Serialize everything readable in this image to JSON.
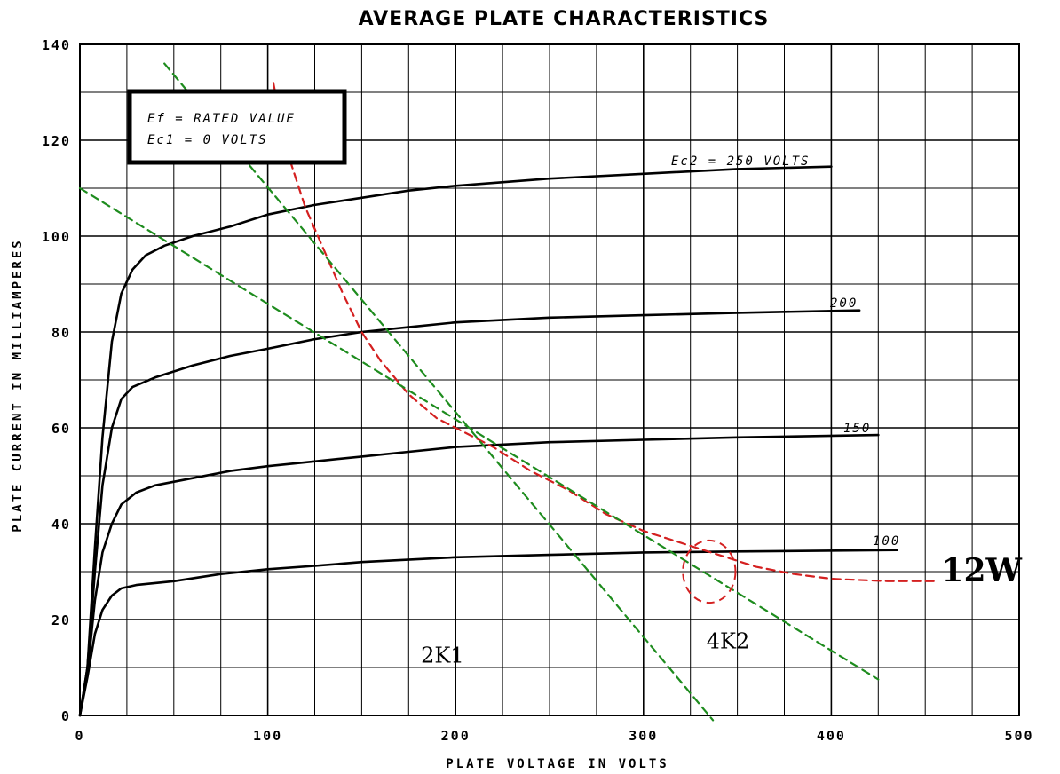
{
  "chart_data": {
    "type": "line",
    "title": "AVERAGE PLATE CHARACTERISTICS",
    "xlabel": "PLATE VOLTAGE IN VOLTS",
    "ylabel": "PLATE CURRENT IN MILLIAMPERES",
    "xlim": [
      0,
      500
    ],
    "ylim": [
      0,
      140
    ],
    "xticks": [
      0,
      100,
      200,
      300,
      400,
      500
    ],
    "yticks": [
      0,
      20,
      40,
      60,
      80,
      100,
      120,
      140
    ],
    "grid": true,
    "conditions": [
      "Ef = RATED VALUE",
      "Ec1 = 0 VOLTS"
    ],
    "series": [
      {
        "name": "Ec2 = 250 VOLTS",
        "color": "#000000",
        "style": "solid",
        "points": [
          [
            0,
            0
          ],
          [
            4,
            10
          ],
          [
            8,
            35
          ],
          [
            12,
            58
          ],
          [
            17,
            78
          ],
          [
            22,
            88
          ],
          [
            28,
            93
          ],
          [
            35,
            96
          ],
          [
            45,
            98
          ],
          [
            60,
            100
          ],
          [
            80,
            102
          ],
          [
            100,
            104.5
          ],
          [
            125,
            106.5
          ],
          [
            150,
            108
          ],
          [
            175,
            109.5
          ],
          [
            200,
            110.5
          ],
          [
            250,
            112
          ],
          [
            300,
            113
          ],
          [
            350,
            114
          ],
          [
            400,
            114.5
          ]
        ]
      },
      {
        "name": "200",
        "color": "#000000",
        "style": "solid",
        "points": [
          [
            0,
            0
          ],
          [
            4,
            10
          ],
          [
            8,
            30
          ],
          [
            12,
            48
          ],
          [
            17,
            60
          ],
          [
            22,
            66
          ],
          [
            28,
            68.5
          ],
          [
            40,
            70.5
          ],
          [
            60,
            73
          ],
          [
            80,
            75
          ],
          [
            100,
            76.5
          ],
          [
            125,
            78.5
          ],
          [
            150,
            80
          ],
          [
            175,
            81
          ],
          [
            200,
            82
          ],
          [
            250,
            83
          ],
          [
            300,
            83.5
          ],
          [
            350,
            84
          ],
          [
            415,
            84.5
          ]
        ]
      },
      {
        "name": "150",
        "color": "#000000",
        "style": "solid",
        "points": [
          [
            0,
            0
          ],
          [
            4,
            9
          ],
          [
            8,
            24
          ],
          [
            12,
            34
          ],
          [
            17,
            40
          ],
          [
            22,
            44
          ],
          [
            30,
            46.5
          ],
          [
            40,
            48
          ],
          [
            60,
            49.5
          ],
          [
            80,
            51
          ],
          [
            100,
            52
          ],
          [
            125,
            53
          ],
          [
            150,
            54
          ],
          [
            175,
            55
          ],
          [
            200,
            56
          ],
          [
            250,
            57
          ],
          [
            300,
            57.5
          ],
          [
            350,
            58
          ],
          [
            425,
            58.5
          ]
        ]
      },
      {
        "name": "100",
        "color": "#000000",
        "style": "solid",
        "points": [
          [
            0,
            0
          ],
          [
            4,
            8
          ],
          [
            8,
            17
          ],
          [
            12,
            22
          ],
          [
            17,
            25
          ],
          [
            22,
            26.5
          ],
          [
            30,
            27.2
          ],
          [
            50,
            28
          ],
          [
            75,
            29.5
          ],
          [
            100,
            30.5
          ],
          [
            125,
            31.2
          ],
          [
            150,
            32
          ],
          [
            200,
            33
          ],
          [
            250,
            33.5
          ],
          [
            300,
            34
          ],
          [
            350,
            34.2
          ],
          [
            435,
            34.5
          ]
        ]
      },
      {
        "name": "",
        "color": "#d42020",
        "style": "dashed",
        "points": [
          [
            103,
            132
          ],
          [
            110,
            118
          ],
          [
            120,
            106
          ],
          [
            130,
            97
          ],
          [
            140,
            88
          ],
          [
            150,
            80
          ],
          [
            160,
            74
          ],
          [
            175,
            67
          ],
          [
            190,
            62
          ],
          [
            205,
            59
          ],
          [
            220,
            56
          ],
          [
            240,
            51
          ],
          [
            260,
            47
          ],
          [
            280,
            42
          ],
          [
            300,
            38.5
          ],
          [
            320,
            36
          ],
          [
            340,
            33.5
          ],
          [
            360,
            31
          ],
          [
            380,
            29.5
          ],
          [
            400,
            28.5
          ],
          [
            430,
            28
          ],
          [
            455,
            28
          ]
        ]
      },
      {
        "name": "",
        "color": "#1e8c1e",
        "style": "dashed",
        "points": [
          [
            45,
            136
          ],
          [
            337,
            -1
          ]
        ]
      },
      {
        "name": "",
        "color": "#1e8c1e",
        "style": "dashed",
        "points": [
          [
            0,
            110
          ],
          [
            425,
            7.5
          ]
        ]
      }
    ],
    "circle": {
      "cx": 335,
      "cy": 30,
      "rx_volts": 14,
      "ry_ma": 6.5,
      "color": "#d42020"
    },
    "annotations": [
      {
        "text": "12W",
        "x": 480,
        "y": 28
      },
      {
        "text": "2K1",
        "x": 193,
        "y": 11
      },
      {
        "text": "4K2",
        "x": 345,
        "y": 14
      }
    ]
  }
}
